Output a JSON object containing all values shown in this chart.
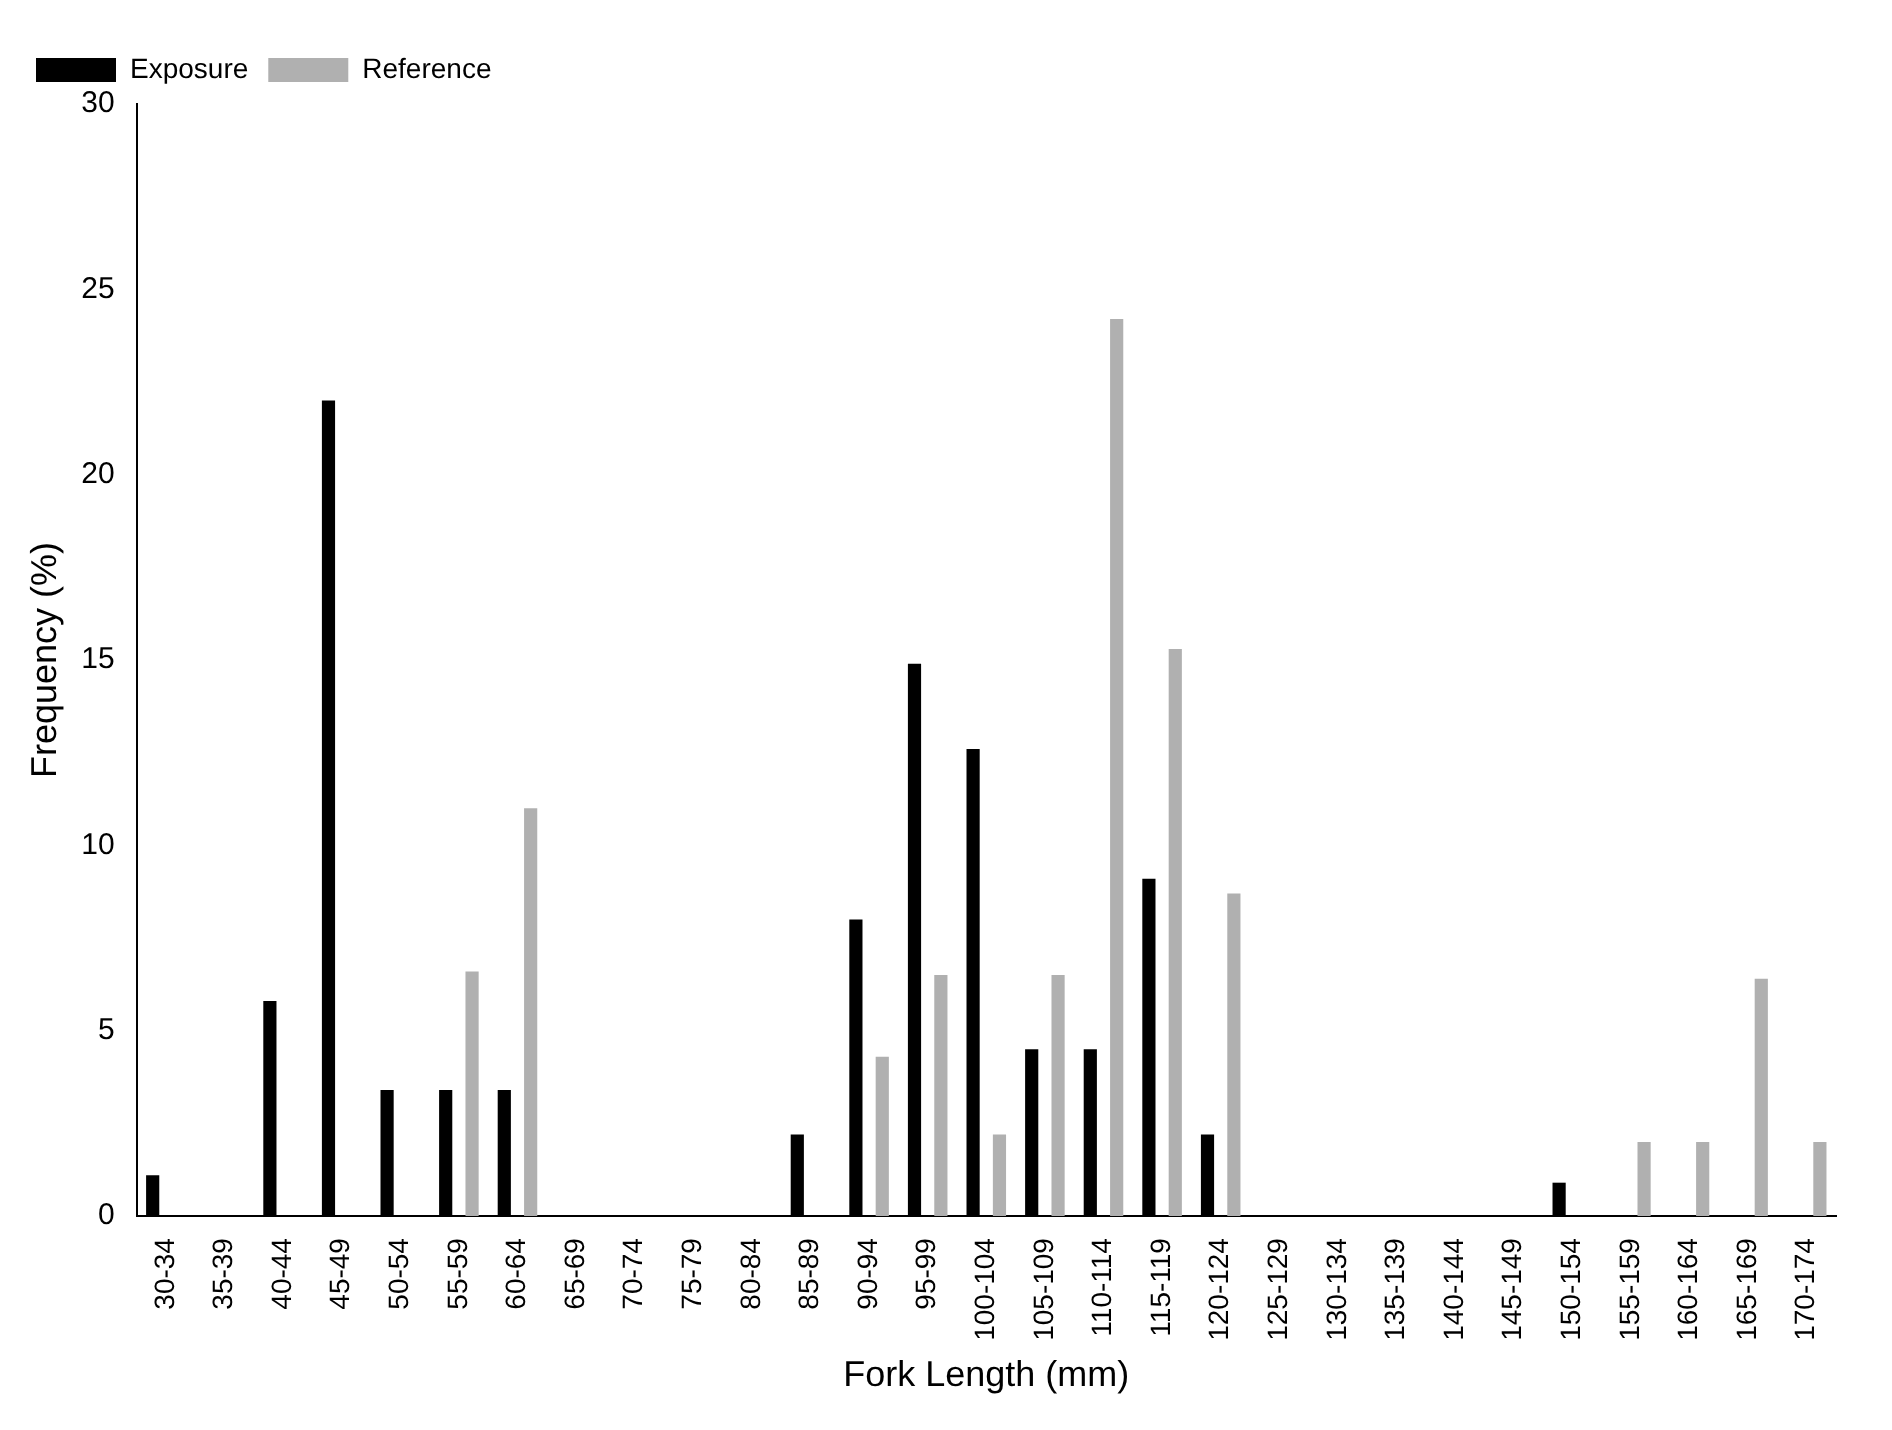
{
  "chart_data": {
    "type": "bar",
    "xlabel": "Fork Length (mm)",
    "ylabel": "Frequency (%)",
    "categories": [
      "30-34",
      "35-39",
      "40-44",
      "45-49",
      "50-54",
      "55-59",
      "60-64",
      "65-69",
      "70-74",
      "75-79",
      "80-84",
      "85-89",
      "90-94",
      "95-99",
      "100-104",
      "105-109",
      "110-114",
      "115-119",
      "120-124",
      "125-129",
      "130-134",
      "135-139",
      "140-144",
      "145-149",
      "150-154",
      "155-159",
      "160-164",
      "165-169",
      "170-174"
    ],
    "series": [
      {
        "name": "Exposure",
        "color": "#000000",
        "values": [
          1.1,
          0,
          5.8,
          22,
          3.4,
          3.4,
          3.4,
          0,
          0,
          0,
          0,
          2.2,
          8,
          14.9,
          12.6,
          4.5,
          4.5,
          9.1,
          2.2,
          0,
          0,
          0,
          0,
          0,
          0.9,
          0,
          0,
          0,
          0
        ]
      },
      {
        "name": "Reference",
        "color": "#b0b0b0",
        "values": [
          0,
          0,
          0,
          0,
          0,
          6.6,
          11,
          0,
          0,
          0,
          0,
          0,
          4.3,
          6.5,
          2.2,
          6.5,
          24.2,
          15.3,
          8.7,
          0,
          0,
          0,
          0,
          0,
          0,
          2,
          2,
          6.4,
          2
        ]
      }
    ],
    "ylim": [
      0,
      30
    ],
    "yticks": [
      0,
      5,
      10,
      15,
      20,
      25,
      30
    ],
    "grid": false,
    "legend": "top left"
  }
}
